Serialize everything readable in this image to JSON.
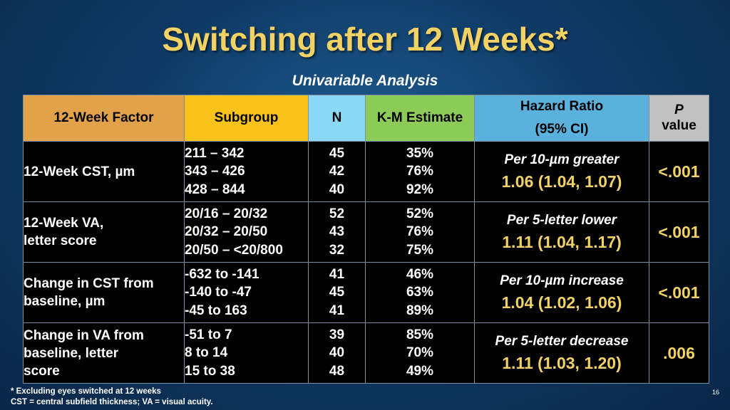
{
  "slide": {
    "title": "Switching after 12 Weeks*",
    "subtitle": "Univariable Analysis",
    "page_number": "16"
  },
  "table": {
    "headers": {
      "factor": "12-Week Factor",
      "subgroup": "Subgroup",
      "n": "N",
      "km": "K-M Estimate",
      "hr_line1": "Hazard Ratio",
      "hr_line2": "(95% CI)",
      "p_line1": "P",
      "p_line2": "value"
    },
    "rows": [
      {
        "factor": [
          "12-Week CST, µm"
        ],
        "subgroups": [
          "211 – 342",
          "343 – 426",
          "428 – 844"
        ],
        "n": [
          "45",
          "42",
          "40"
        ],
        "km": [
          "35%",
          "76%",
          "92%"
        ],
        "hr_label": "Per 10-µm greater",
        "hr_value": "1.06 (1.04, 1.07)",
        "p": "<.001"
      },
      {
        "factor": [
          "12-Week VA,",
          "letter score"
        ],
        "subgroups": [
          "20/16 – 20/32",
          "20/32 – 20/50",
          "20/50 – <20/800"
        ],
        "n": [
          "52",
          "43",
          "32"
        ],
        "km": [
          "52%",
          "76%",
          "75%"
        ],
        "hr_label": "Per 5-letter lower",
        "hr_value": "1.11 (1.04, 1.17)",
        "p": "<.001"
      },
      {
        "factor": [
          "Change in CST from",
          "baseline, µm"
        ],
        "subgroups": [
          "-632 to -141",
          "-140 to -47",
          "-45 to 163"
        ],
        "n": [
          "41",
          "45",
          "41"
        ],
        "km": [
          "46%",
          "63%",
          "89%"
        ],
        "hr_label": "Per 10-µm increase",
        "hr_value": "1.04 (1.02, 1.06)",
        "p": "<.001"
      },
      {
        "factor": [
          "Change in VA from",
          "baseline, letter",
          "score"
        ],
        "subgroups": [
          "-51 to 7",
          "8 to 14",
          "15 to 38"
        ],
        "n": [
          "39",
          "40",
          "48"
        ],
        "km": [
          "85%",
          "70%",
          "49%"
        ],
        "hr_label": "Per 5-letter decrease",
        "hr_value": "1.11 (1.03, 1.20)",
        "p": ".006"
      }
    ]
  },
  "footnotes": [
    "* Excluding eyes switched at 12 weeks",
    "CST = central subfield thickness; VA = visual acuity."
  ]
}
